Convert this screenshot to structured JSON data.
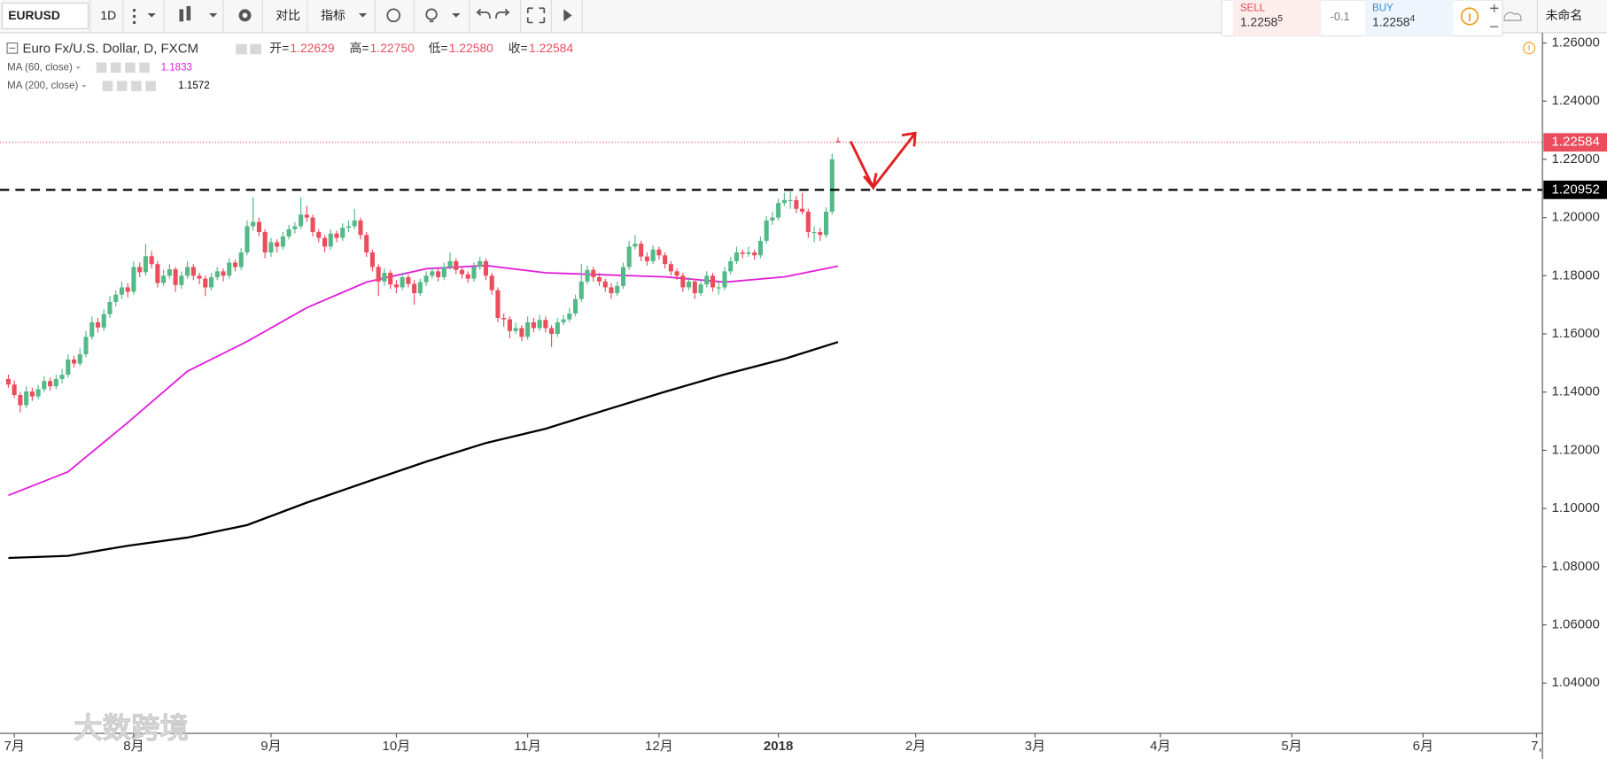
{
  "toolbar": {
    "symbol": "EURUSD",
    "interval": "1D",
    "compare": "对比",
    "indicators": "指标",
    "layout_name": "未命名"
  },
  "trade": {
    "sell_label": "SELL",
    "sell_price": "1.2258",
    "sell_pip": "5",
    "spread": "-0.1",
    "buy_label": "BUY",
    "buy_price": "1.2258",
    "buy_pip": "4"
  },
  "watermark": "大数跨境",
  "chart_data": {
    "type": "candlestick",
    "title": "Euro Fx/U.S. Dollar, D, FXCM",
    "ohlc_legend": [
      {
        "label": "开=",
        "value": "1.22629"
      },
      {
        "label": "高=",
        "value": "1.22750"
      },
      {
        "label": "低=",
        "value": "1.22580"
      },
      {
        "label": "收=",
        "value": "1.22584"
      }
    ],
    "up_color": "#53b987",
    "down_color": "#eb4d5c",
    "candles": [
      [
        1.1445,
        1.146,
        1.1415,
        1.1426
      ],
      [
        1.1426,
        1.144,
        1.138,
        1.139
      ],
      [
        1.139,
        1.14,
        1.133,
        1.1355
      ],
      [
        1.1355,
        1.142,
        1.1345,
        1.1402
      ],
      [
        1.1402,
        1.1415,
        1.137,
        1.1385
      ],
      [
        1.1385,
        1.1425,
        1.1375,
        1.141
      ],
      [
        1.141,
        1.1455,
        1.14,
        1.1438
      ],
      [
        1.1438,
        1.145,
        1.1405,
        1.142
      ],
      [
        1.142,
        1.146,
        1.141,
        1.1445
      ],
      [
        1.1445,
        1.148,
        1.143,
        1.146
      ],
      [
        1.146,
        1.153,
        1.145,
        1.1512
      ],
      [
        1.1512,
        1.1525,
        1.1485,
        1.1498
      ],
      [
        1.1498,
        1.155,
        1.149,
        1.153
      ],
      [
        1.153,
        1.161,
        1.152,
        1.159
      ],
      [
        1.159,
        1.166,
        1.158,
        1.164
      ],
      [
        1.164,
        1.1655,
        1.1605,
        1.1622
      ],
      [
        1.1622,
        1.1685,
        1.161,
        1.1668
      ],
      [
        1.1668,
        1.173,
        1.1655,
        1.171
      ],
      [
        1.171,
        1.175,
        1.1695,
        1.1735
      ],
      [
        1.1735,
        1.178,
        1.172,
        1.176
      ],
      [
        1.176,
        1.1775,
        1.1725,
        1.1745
      ],
      [
        1.1745,
        1.185,
        1.1735,
        1.183
      ],
      [
        1.183,
        1.1845,
        1.1795,
        1.1812
      ],
      [
        1.1812,
        1.191,
        1.18,
        1.1867
      ],
      [
        1.1867,
        1.1885,
        1.1825,
        1.184
      ],
      [
        1.184,
        1.185,
        1.176,
        1.1775
      ],
      [
        1.1775,
        1.182,
        1.1765,
        1.18
      ],
      [
        1.18,
        1.184,
        1.179,
        1.1822
      ],
      [
        1.1822,
        1.183,
        1.1745,
        1.1768
      ],
      [
        1.1768,
        1.1815,
        1.1755,
        1.18
      ],
      [
        1.18,
        1.185,
        1.179,
        1.183
      ],
      [
        1.183,
        1.184,
        1.1785,
        1.18
      ],
      [
        1.18,
        1.181,
        1.177,
        1.179
      ],
      [
        1.179,
        1.18,
        1.173,
        1.176
      ],
      [
        1.176,
        1.181,
        1.175,
        1.1795
      ],
      [
        1.1795,
        1.183,
        1.1785,
        1.1815
      ],
      [
        1.1815,
        1.1825,
        1.178,
        1.18
      ],
      [
        1.18,
        1.186,
        1.179,
        1.1845
      ],
      [
        1.1845,
        1.1855,
        1.1815,
        1.183
      ],
      [
        1.183,
        1.1895,
        1.182,
        1.188
      ],
      [
        1.188,
        1.199,
        1.187,
        1.197
      ],
      [
        1.197,
        1.207,
        1.1955,
        1.1985
      ],
      [
        1.1985,
        1.2,
        1.1935,
        1.195
      ],
      [
        1.195,
        1.196,
        1.186,
        1.188
      ],
      [
        1.188,
        1.193,
        1.1865,
        1.1915
      ],
      [
        1.1915,
        1.1925,
        1.188,
        1.19
      ],
      [
        1.19,
        1.195,
        1.189,
        1.1935
      ],
      [
        1.1935,
        1.1975,
        1.1925,
        1.196
      ],
      [
        1.196,
        1.1985,
        1.1945,
        1.197
      ],
      [
        1.197,
        1.207,
        1.196,
        1.201
      ],
      [
        1.201,
        1.204,
        1.1985,
        1.2
      ],
      [
        1.2,
        1.201,
        1.1935,
        1.195
      ],
      [
        1.195,
        1.196,
        1.1915,
        1.193
      ],
      [
        1.193,
        1.194,
        1.188,
        1.19
      ],
      [
        1.19,
        1.196,
        1.189,
        1.1945
      ],
      [
        1.1945,
        1.1955,
        1.1915,
        1.193
      ],
      [
        1.193,
        1.198,
        1.192,
        1.1965
      ],
      [
        1.1965,
        1.199,
        1.195,
        1.197
      ],
      [
        1.197,
        1.203,
        1.196,
        1.199
      ],
      [
        1.199,
        1.2,
        1.1925,
        1.194
      ],
      [
        1.194,
        1.195,
        1.1865,
        1.188
      ],
      [
        1.188,
        1.189,
        1.1815,
        1.183
      ],
      [
        1.183,
        1.184,
        1.173,
        1.178
      ],
      [
        1.178,
        1.1825,
        1.1765,
        1.181
      ],
      [
        1.181,
        1.182,
        1.1755,
        1.177
      ],
      [
        1.177,
        1.1785,
        1.174,
        1.176
      ],
      [
        1.176,
        1.181,
        1.175,
        1.1795
      ],
      [
        1.1795,
        1.1805,
        1.176,
        1.1772
      ],
      [
        1.1772,
        1.1785,
        1.17,
        1.174
      ],
      [
        1.174,
        1.179,
        1.173,
        1.1778
      ],
      [
        1.1778,
        1.1815,
        1.1765,
        1.18
      ],
      [
        1.18,
        1.183,
        1.179,
        1.1815
      ],
      [
        1.1815,
        1.1825,
        1.178,
        1.1795
      ],
      [
        1.1795,
        1.1845,
        1.1785,
        1.183
      ],
      [
        1.183,
        1.188,
        1.182,
        1.185
      ],
      [
        1.185,
        1.186,
        1.1805,
        1.182
      ],
      [
        1.182,
        1.183,
        1.179,
        1.1805
      ],
      [
        1.1805,
        1.1815,
        1.1775,
        1.179
      ],
      [
        1.179,
        1.1845,
        1.178,
        1.183
      ],
      [
        1.183,
        1.1865,
        1.182,
        1.185
      ],
      [
        1.185,
        1.186,
        1.1785,
        1.18
      ],
      [
        1.18,
        1.181,
        1.1735,
        1.175
      ],
      [
        1.175,
        1.176,
        1.164,
        1.1655
      ],
      [
        1.1655,
        1.167,
        1.1625,
        1.165
      ],
      [
        1.165,
        1.166,
        1.1585,
        1.161
      ],
      [
        1.161,
        1.164,
        1.16,
        1.162
      ],
      [
        1.162,
        1.163,
        1.1575,
        1.159
      ],
      [
        1.159,
        1.166,
        1.158,
        1.164
      ],
      [
        1.164,
        1.1655,
        1.1605,
        1.162
      ],
      [
        1.162,
        1.1665,
        1.161,
        1.1648
      ],
      [
        1.1648,
        1.166,
        1.1605,
        1.162
      ],
      [
        1.162,
        1.163,
        1.1555,
        1.16
      ],
      [
        1.16,
        1.1655,
        1.159,
        1.164
      ],
      [
        1.164,
        1.1665,
        1.163,
        1.165
      ],
      [
        1.165,
        1.169,
        1.164,
        1.167
      ],
      [
        1.167,
        1.1735,
        1.166,
        1.172
      ],
      [
        1.172,
        1.184,
        1.171,
        1.178
      ],
      [
        1.178,
        1.1835,
        1.177,
        1.182
      ],
      [
        1.182,
        1.183,
        1.178,
        1.1795
      ],
      [
        1.1795,
        1.181,
        1.1765,
        1.178
      ],
      [
        1.178,
        1.179,
        1.1745,
        1.176
      ],
      [
        1.176,
        1.1775,
        1.172,
        1.174
      ],
      [
        1.174,
        1.178,
        1.173,
        1.1765
      ],
      [
        1.1765,
        1.1845,
        1.1755,
        1.183
      ],
      [
        1.183,
        1.192,
        1.182,
        1.19
      ],
      [
        1.19,
        1.194,
        1.189,
        1.191
      ],
      [
        1.191,
        1.192,
        1.185,
        1.1866
      ],
      [
        1.1866,
        1.188,
        1.1835,
        1.185
      ],
      [
        1.185,
        1.1905,
        1.184,
        1.189
      ],
      [
        1.189,
        1.19,
        1.1855,
        1.187
      ],
      [
        1.187,
        1.188,
        1.1825,
        1.184
      ],
      [
        1.184,
        1.185,
        1.18,
        1.1815
      ],
      [
        1.1815,
        1.1825,
        1.1785,
        1.18
      ],
      [
        1.18,
        1.181,
        1.1745,
        1.176
      ],
      [
        1.176,
        1.1795,
        1.175,
        1.178
      ],
      [
        1.178,
        1.179,
        1.172,
        1.174
      ],
      [
        1.174,
        1.1785,
        1.173,
        1.177
      ],
      [
        1.177,
        1.1815,
        1.176,
        1.18
      ],
      [
        1.18,
        1.181,
        1.1745,
        1.176
      ],
      [
        1.176,
        1.178,
        1.1735,
        1.176
      ],
      [
        1.176,
        1.183,
        1.175,
        1.1815
      ],
      [
        1.1815,
        1.1865,
        1.1805,
        1.185
      ],
      [
        1.185,
        1.19,
        1.184,
        1.188
      ],
      [
        1.188,
        1.189,
        1.186,
        1.1875
      ],
      [
        1.1875,
        1.19,
        1.1865,
        1.188
      ],
      [
        1.188,
        1.189,
        1.1855,
        1.187
      ],
      [
        1.187,
        1.1935,
        1.186,
        1.192
      ],
      [
        1.192,
        1.2005,
        1.191,
        1.199
      ],
      [
        1.199,
        1.202,
        1.1975,
        1.2
      ],
      [
        1.2,
        1.2065,
        1.199,
        1.205
      ],
      [
        1.205,
        1.2085,
        1.204,
        1.206
      ],
      [
        1.206,
        1.209,
        1.203,
        1.206
      ],
      [
        1.206,
        1.2075,
        1.2015,
        1.203
      ],
      [
        1.203,
        1.2085,
        1.201,
        1.202
      ],
      [
        1.202,
        1.203,
        1.193,
        1.195
      ],
      [
        1.195,
        1.197,
        1.1915,
        1.195
      ],
      [
        1.195,
        1.1965,
        1.192,
        1.194
      ],
      [
        1.194,
        1.2035,
        1.193,
        1.202
      ],
      [
        1.202,
        1.222,
        1.201,
        1.22
      ],
      [
        1.22629,
        1.2275,
        1.2258,
        1.22584
      ]
    ],
    "series": [
      {
        "name": "MA (60, close)",
        "color": "#e11fd8",
        "legend_value": 1.1833,
        "x": [
          0,
          10,
          20,
          30,
          40,
          50,
          60,
          70,
          80,
          90,
          100,
          110,
          120,
          130,
          139
        ],
        "values": [
          1.1045,
          1.1126,
          1.1295,
          1.1472,
          1.1574,
          1.169,
          1.1778,
          1.1824,
          1.1835,
          1.181,
          1.1803,
          1.1796,
          1.1778,
          1.1796,
          1.1833
        ]
      },
      {
        "name": "MA (200, close)",
        "color": "#000000",
        "legend_value": 1.1572,
        "x": [
          0,
          10,
          20,
          30,
          40,
          50,
          60,
          70,
          80,
          90,
          100,
          110,
          120,
          130,
          139
        ],
        "values": [
          1.083,
          1.0837,
          1.0872,
          1.09,
          1.0943,
          1.102,
          1.1091,
          1.1161,
          1.1225,
          1.1274,
          1.1338,
          1.1401,
          1.1461,
          1.1514,
          1.1572
        ]
      }
    ],
    "last_price": 1.22584,
    "level_line": 1.20952,
    "ylim": [
      1.0227,
      1.2635
    ],
    "yticks": [
      {
        "value": 1.26,
        "label": "1.26000"
      },
      {
        "value": 1.24,
        "label": "1.24000"
      },
      {
        "value": 1.22,
        "label": "1.22000"
      },
      {
        "value": 1.2,
        "label": "1.20000"
      },
      {
        "value": 1.18,
        "label": "1.18000"
      },
      {
        "value": 1.16,
        "label": "1.16000"
      },
      {
        "value": 1.14,
        "label": "1.14000"
      },
      {
        "value": 1.12,
        "label": "1.12000"
      },
      {
        "value": 1.1,
        "label": "1.10000"
      },
      {
        "value": 1.08,
        "label": "1.08000"
      },
      {
        "value": 1.06,
        "label": "1.06000"
      },
      {
        "value": 1.04,
        "label": "1.04000"
      }
    ],
    "xlim": [
      -1.4,
      257
    ],
    "xticks": [
      {
        "value": 1,
        "label": "7月"
      },
      {
        "value": 21,
        "label": "8月"
      },
      {
        "value": 44,
        "label": "9月"
      },
      {
        "value": 65,
        "label": "10月"
      },
      {
        "value": 87,
        "label": "11月"
      },
      {
        "value": 109,
        "label": "12月"
      },
      {
        "value": 129,
        "label": "2018"
      },
      {
        "value": 152,
        "label": "2月"
      },
      {
        "value": 172,
        "label": "3月"
      },
      {
        "value": 193,
        "label": "4月"
      },
      {
        "value": 215,
        "label": "5月"
      },
      {
        "value": 237,
        "label": "6月"
      },
      {
        "value": 256,
        "label": "7,"
      }
    ],
    "grid": false
  }
}
